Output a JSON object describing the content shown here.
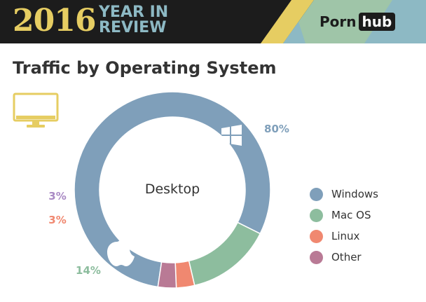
{
  "header": {
    "year": "2016",
    "subtitle_line1": "YEAR IN",
    "subtitle_line2": "REVIEW",
    "logo_left": "Porn",
    "logo_right": "hub"
  },
  "colors": {
    "windows": "#7f9fba",
    "macos": "#8dbd9e",
    "linux": "#f08870",
    "other": "#b97a95",
    "other_label": "#a98ac4",
    "gold": "#e6cd62",
    "teal": "#8db9c4",
    "mint": "#9fc5a8"
  },
  "device_icon": "desktop-monitor-icon",
  "chart_data": {
    "type": "pie",
    "title": "Traffic by Operating System",
    "center_label": "Desktop",
    "unit": "%",
    "categories": [
      "Windows",
      "Mac OS",
      "Linux",
      "Other"
    ],
    "values": [
      80,
      14,
      3,
      3
    ],
    "value_labels": [
      "80%",
      "14%",
      "3%",
      "3%"
    ],
    "legend": {
      "position": "right",
      "entries": [
        "Windows",
        "Mac OS",
        "Linux",
        "Other"
      ]
    },
    "slice_icons": [
      "windows-logo-icon",
      "apple-logo-icon",
      "",
      ""
    ]
  }
}
